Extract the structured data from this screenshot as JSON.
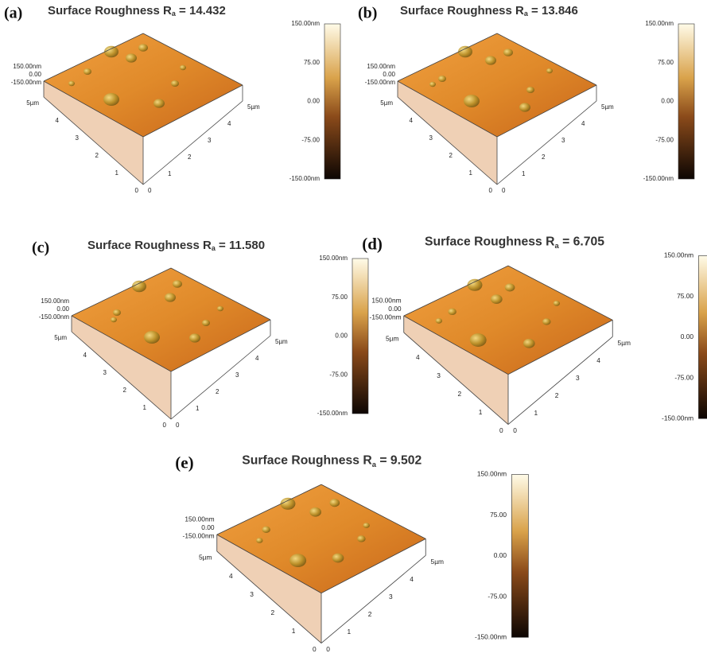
{
  "panels": [
    {
      "label": "(a)",
      "title": [
        "Surface Roughness R",
        "a",
        " = 14.432"
      ]
    },
    {
      "label": "(b)",
      "title": [
        "Surface Roughness R",
        "a",
        " = 13.846"
      ]
    },
    {
      "label": "(c)",
      "title": [
        "Surface Roughness R",
        "a",
        " = 11.580"
      ]
    },
    {
      "label": "(d)",
      "title": [
        "Surface Roughness R",
        "a",
        " = 6.705"
      ]
    },
    {
      "label": "(e)",
      "title": [
        "Surface Roughness R",
        "a",
        " = 9.502"
      ]
    }
  ],
  "colorbar_labels": [
    "150.00nm",
    "75.00",
    "0.00",
    "-75.00",
    "-150.00nm"
  ],
  "z_labels": [
    "150.00nm",
    "0.00",
    "-150.00nm"
  ],
  "left_axis_labels": [
    "5µm",
    "4",
    "3",
    "2",
    "1",
    "0"
  ],
  "right_axis_labels": [
    "0",
    "1",
    "2",
    "3",
    "4",
    "5µm"
  ]
}
